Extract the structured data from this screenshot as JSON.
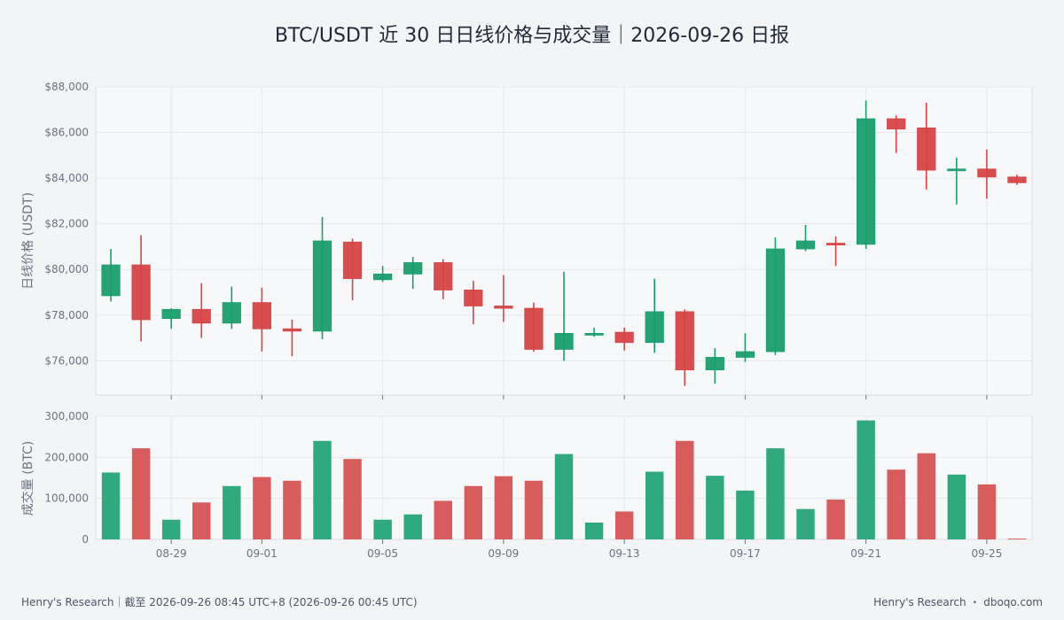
{
  "title": "BTC/USDT 近 30 日日线价格与成交量｜2026-09-26 日报",
  "footer": {
    "left": "Henry's Research｜截至 2026-09-26 08:45 UTC+8 (2026-09-26 00:45 UTC)",
    "right": "Henry's Research ・ dboqo.com"
  },
  "colors": {
    "up": "#1a9e6e",
    "down": "#d64545",
    "grid": "#e5e7eb",
    "panel": "#f7f8fa"
  },
  "chart_data": [
    {
      "type": "candlestick",
      "ylabel": "日线价格 (USDT)",
      "ylim": [
        74500,
        88000
      ],
      "yticks": [
        76000,
        78000,
        80000,
        82000,
        84000,
        86000,
        88000
      ],
      "ytick_labels": [
        "$76,000",
        "$78,000",
        "$80,000",
        "$82,000",
        "$84,000",
        "$86,000",
        "$88,000"
      ],
      "grid": true,
      "dates": [
        "08-27",
        "08-28",
        "08-29",
        "08-30",
        "08-31",
        "09-01",
        "09-02",
        "09-03",
        "09-04",
        "09-05",
        "09-06",
        "09-07",
        "09-08",
        "09-09",
        "09-10",
        "09-11",
        "09-12",
        "09-13",
        "09-14",
        "09-15",
        "09-16",
        "09-17",
        "09-18",
        "09-19",
        "09-20",
        "09-21",
        "09-22",
        "09-23",
        "09-24",
        "09-25",
        "09-26"
      ],
      "open": [
        78850,
        80200,
        77850,
        78250,
        77650,
        78550,
        77400,
        77300,
        81200,
        79550,
        79800,
        80300,
        79100,
        78400,
        78300,
        76500,
        77200,
        77250,
        76800,
        78150,
        75600,
        76150,
        76400,
        80900,
        81150,
        81100,
        86600,
        86200,
        84350,
        84400,
        84050
      ],
      "high": [
        80900,
        81500,
        78300,
        79400,
        79250,
        79200,
        77800,
        82300,
        81350,
        80150,
        80550,
        80450,
        79500,
        79750,
        78550,
        79900,
        77450,
        77450,
        79600,
        78250,
        76550,
        77200,
        81400,
        81950,
        81450,
        87400,
        86750,
        87300,
        84900,
        85250,
        84150
      ],
      "low": [
        78600,
        76850,
        77400,
        77000,
        77400,
        76400,
        76200,
        76950,
        78650,
        79450,
        79150,
        78700,
        77600,
        77700,
        76400,
        76000,
        77050,
        76450,
        76350,
        74900,
        75000,
        75950,
        76250,
        80800,
        80150,
        80900,
        85100,
        83500,
        82850,
        83100,
        83700
      ],
      "close": [
        80200,
        77800,
        78250,
        77650,
        78550,
        77400,
        77300,
        81250,
        79600,
        79800,
        80300,
        79100,
        78400,
        78300,
        76500,
        77200,
        77200,
        76800,
        78150,
        75600,
        76150,
        76400,
        80900,
        81250,
        81100,
        86600,
        86150,
        84350,
        84400,
        84050,
        83800
      ]
    },
    {
      "type": "bar",
      "ylabel": "成交量 (BTC)",
      "ylim": [
        0,
        300000
      ],
      "yticks": [
        0,
        100000,
        200000,
        300000
      ],
      "ytick_labels": [
        "0",
        "100,000",
        "200,000",
        "300,000"
      ],
      "grid": true,
      "values": [
        163000,
        222000,
        48000,
        90000,
        130000,
        152000,
        143000,
        240000,
        196000,
        48000,
        61000,
        94000,
        130000,
        154000,
        143000,
        208000,
        41000,
        68000,
        165000,
        240000,
        155000,
        119000,
        222000,
        74000,
        97000,
        290000,
        170000,
        210000,
        158000,
        134000,
        2000
      ]
    }
  ],
  "x_ticks": [
    {
      "index": 2,
      "label": "08-29"
    },
    {
      "index": 5,
      "label": "09-01"
    },
    {
      "index": 9,
      "label": "09-05"
    },
    {
      "index": 13,
      "label": "09-09"
    },
    {
      "index": 17,
      "label": "09-13"
    },
    {
      "index": 21,
      "label": "09-17"
    },
    {
      "index": 25,
      "label": "09-21"
    },
    {
      "index": 29,
      "label": "09-25"
    }
  ]
}
